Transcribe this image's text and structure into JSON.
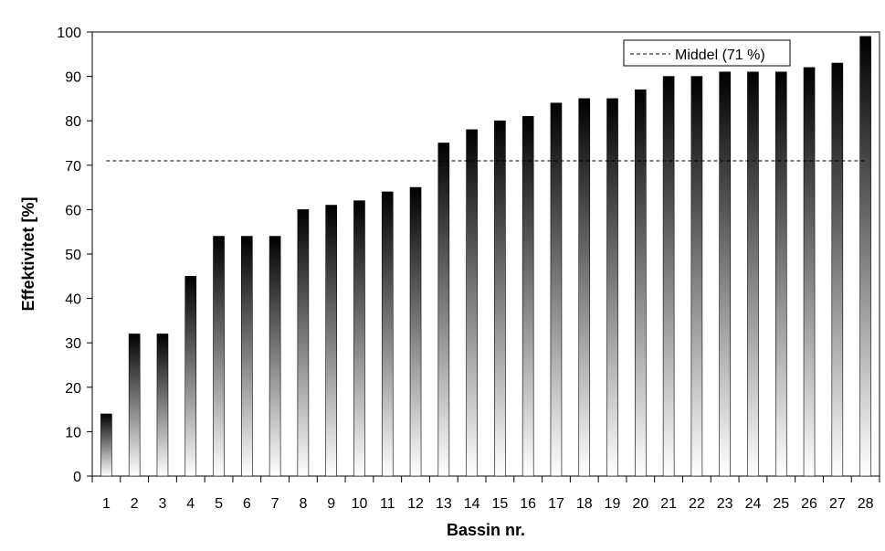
{
  "chart_data": {
    "type": "bar",
    "xlabel": "Bassin nr.",
    "ylabel": "Effektivitet [%]",
    "ylim": [
      0,
      100
    ],
    "yticks": [
      0,
      10,
      20,
      30,
      40,
      50,
      60,
      70,
      80,
      90,
      100
    ],
    "categories": [
      "1",
      "2",
      "3",
      "4",
      "5",
      "6",
      "7",
      "8",
      "9",
      "10",
      "11",
      "12",
      "13",
      "14",
      "15",
      "16",
      "17",
      "18",
      "19",
      "20",
      "21",
      "22",
      "23",
      "24",
      "25",
      "26",
      "27",
      "28"
    ],
    "values": [
      14,
      32,
      32,
      45,
      54,
      54,
      54,
      60,
      61,
      62,
      64,
      65,
      75,
      78,
      80,
      81,
      84,
      85,
      85,
      87,
      90,
      90,
      91,
      91,
      91,
      92,
      93,
      99
    ],
    "reference_line": {
      "label": "Middel (71 %)",
      "value": 71,
      "style": "dashed"
    },
    "legend": "top-right",
    "grid": false,
    "bar_fill": "vertical gradient black to white",
    "colors": {
      "bar_top": "#000000",
      "bar_bottom": "#ffffff",
      "axis": "#000000"
    }
  }
}
